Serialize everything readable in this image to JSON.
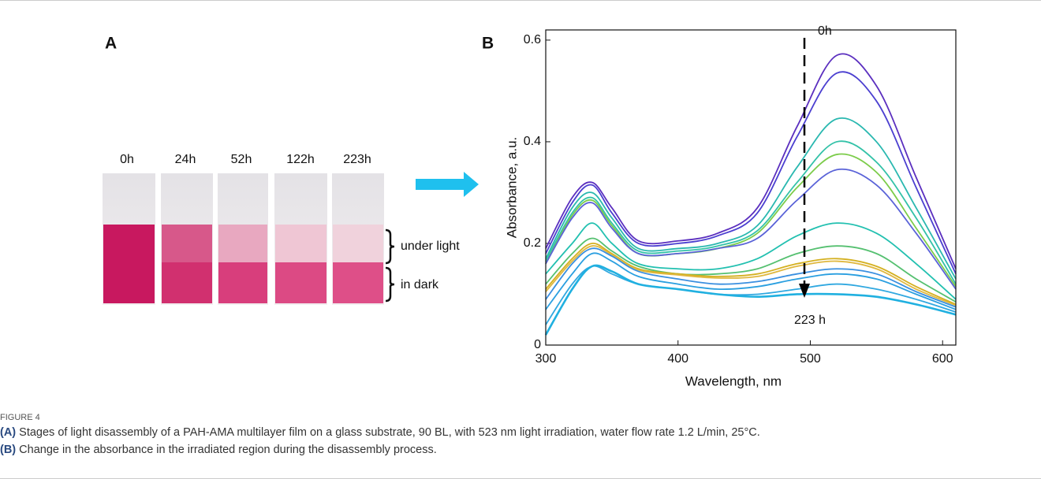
{
  "panel_labels": [
    "A",
    "B"
  ],
  "photo": {
    "time_labels": [
      "0h",
      "24h",
      "52h",
      "122h",
      "223h"
    ],
    "region_labels": [
      "under light",
      "in dark"
    ]
  },
  "chart_data": {
    "type": "line",
    "xlabel": "Wavelength, nm",
    "ylabel": "Absorbance, a.u.",
    "annotations": [
      "0h",
      "223 h"
    ],
    "x": [
      300,
      320,
      335,
      350,
      370,
      400,
      430,
      460,
      490,
      520,
      550,
      580,
      610
    ],
    "xlim": [
      300,
      610
    ],
    "xticks": [
      300,
      400,
      500,
      600
    ],
    "ylim": [
      0,
      0.62
    ],
    "yticks": [
      0,
      0.2,
      0.4,
      0.6
    ],
    "series": [
      {
        "color": "#5b2fbf",
        "values": [
          0.19,
          0.29,
          0.32,
          0.27,
          0.205,
          0.205,
          0.22,
          0.27,
          0.43,
          0.57,
          0.51,
          0.33,
          0.15
        ]
      },
      {
        "color": "#4b3fd0",
        "values": [
          0.18,
          0.28,
          0.315,
          0.26,
          0.2,
          0.2,
          0.215,
          0.26,
          0.41,
          0.535,
          0.48,
          0.31,
          0.14
        ]
      },
      {
        "color": "#2ab8b0",
        "values": [
          0.17,
          0.27,
          0.3,
          0.25,
          0.19,
          0.19,
          0.2,
          0.235,
          0.35,
          0.445,
          0.4,
          0.27,
          0.13
        ]
      },
      {
        "color": "#33c2a8",
        "values": [
          0.165,
          0.26,
          0.29,
          0.24,
          0.185,
          0.185,
          0.195,
          0.225,
          0.32,
          0.4,
          0.36,
          0.25,
          0.12
        ]
      },
      {
        "color": "#7ccc4a",
        "values": [
          0.16,
          0.255,
          0.285,
          0.235,
          0.18,
          0.18,
          0.19,
          0.22,
          0.31,
          0.375,
          0.34,
          0.23,
          0.115
        ]
      },
      {
        "color": "#5a63d8",
        "values": [
          0.16,
          0.25,
          0.28,
          0.23,
          0.18,
          0.18,
          0.19,
          0.21,
          0.285,
          0.345,
          0.315,
          0.22,
          0.11
        ]
      },
      {
        "color": "#22c0b0",
        "values": [
          0.14,
          0.2,
          0.24,
          0.2,
          0.16,
          0.15,
          0.15,
          0.17,
          0.215,
          0.24,
          0.22,
          0.16,
          0.09
        ]
      },
      {
        "color": "#55c070",
        "values": [
          0.12,
          0.18,
          0.21,
          0.185,
          0.155,
          0.14,
          0.14,
          0.15,
          0.18,
          0.195,
          0.18,
          0.13,
          0.085
        ]
      },
      {
        "color": "#d4b020",
        "values": [
          0.11,
          0.17,
          0.2,
          0.18,
          0.15,
          0.14,
          0.135,
          0.14,
          0.16,
          0.17,
          0.155,
          0.115,
          0.08
        ]
      },
      {
        "color": "#e0b840",
        "values": [
          0.105,
          0.165,
          0.195,
          0.178,
          0.148,
          0.138,
          0.132,
          0.135,
          0.155,
          0.165,
          0.15,
          0.11,
          0.078
        ]
      },
      {
        "color": "#3a8fe0",
        "values": [
          0.09,
          0.16,
          0.19,
          0.175,
          0.145,
          0.13,
          0.12,
          0.125,
          0.14,
          0.15,
          0.14,
          0.105,
          0.075
        ]
      },
      {
        "color": "#2a9fe0",
        "values": [
          0.07,
          0.14,
          0.18,
          0.165,
          0.135,
          0.12,
          0.11,
          0.115,
          0.13,
          0.14,
          0.13,
          0.1,
          0.07
        ]
      },
      {
        "color": "#30a8e0",
        "values": [
          0.04,
          0.12,
          0.155,
          0.14,
          0.12,
          0.11,
          0.1,
          0.1,
          0.11,
          0.12,
          0.11,
          0.09,
          0.065
        ]
      },
      {
        "color": "#20b0e0",
        "values": [
          0.02,
          0.11,
          0.155,
          0.145,
          0.12,
          0.11,
          0.1,
          0.095,
          0.1,
          0.1,
          0.095,
          0.08,
          0.06
        ]
      }
    ]
  },
  "caption": {
    "figure_label": "FIGURE 4",
    "parts": [
      {
        "label": "(A)",
        "text": " Stages of light disassembly of a PAH-AMA multilayer film on a glass substrate, 90 BL, with 523 nm light irradiation, water flow rate 1.2 L/min, 25°C."
      },
      {
        "label": "(B)",
        "text": " Change in the absorbance in the irradiated region during the disassembly process."
      }
    ]
  }
}
